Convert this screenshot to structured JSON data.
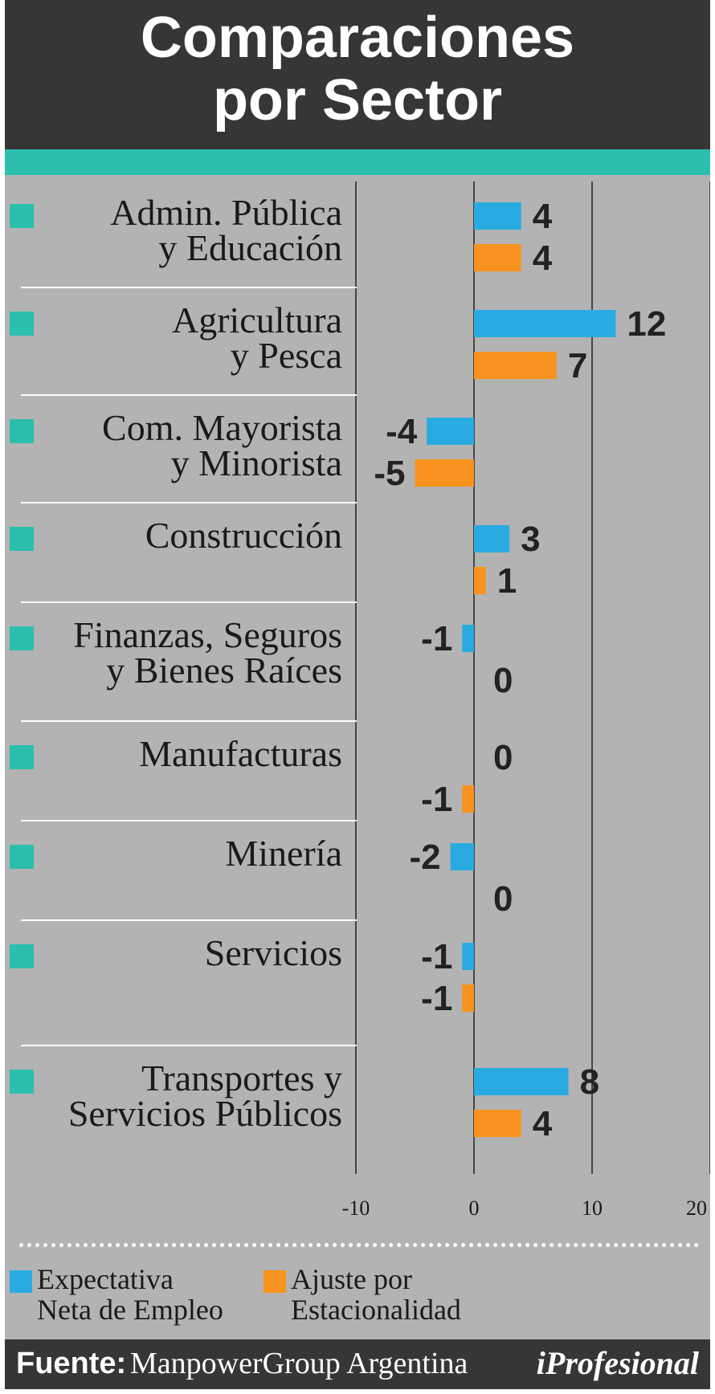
{
  "header": {
    "title_line1": "Comparaciones",
    "title_line2": "por Sector"
  },
  "colors": {
    "header_bg": "#363636",
    "accent": "#2cbfae",
    "panel_bg": "#b3b3b3",
    "series1": "#29abe2",
    "series2": "#f7931e"
  },
  "chart_data": {
    "type": "bar",
    "orientation": "horizontal",
    "categories": [
      [
        "Admin. Pública",
        "y Educación"
      ],
      [
        "Agricultura",
        "y Pesca"
      ],
      [
        "Com. Mayorista",
        "y Minorista"
      ],
      [
        "Construcción"
      ],
      [
        "Finanzas, Seguros",
        "y Bienes Raíces"
      ],
      [
        "Manufacturas"
      ],
      [
        "Minería"
      ],
      [
        "Servicios"
      ],
      [
        "Transportes y",
        "Servicios Públicos"
      ]
    ],
    "series": [
      {
        "name": "Expectativa Neta de Empleo",
        "color": "#29abe2",
        "values": [
          4,
          12,
          -4,
          3,
          -1,
          0,
          -2,
          -1,
          8
        ]
      },
      {
        "name": "Ajuste por Estacionalidad",
        "color": "#f7931e",
        "values": [
          4,
          7,
          -5,
          1,
          0,
          -1,
          0,
          -1,
          4
        ]
      }
    ],
    "xlim": [
      -10,
      20
    ],
    "xticks": [
      -10,
      0,
      10,
      20
    ],
    "grid": true
  },
  "legend": {
    "items": [
      {
        "lines": [
          "Expectativa",
          "Neta de Empleo"
        ],
        "color": "#29abe2"
      },
      {
        "lines": [
          "Ajuste por",
          "Estacionalidad"
        ],
        "color": "#f7931e"
      }
    ]
  },
  "footer": {
    "source_label": "Fuente:",
    "source_value": "ManpowerGroup Argentina",
    "brand": "iProfesional"
  }
}
